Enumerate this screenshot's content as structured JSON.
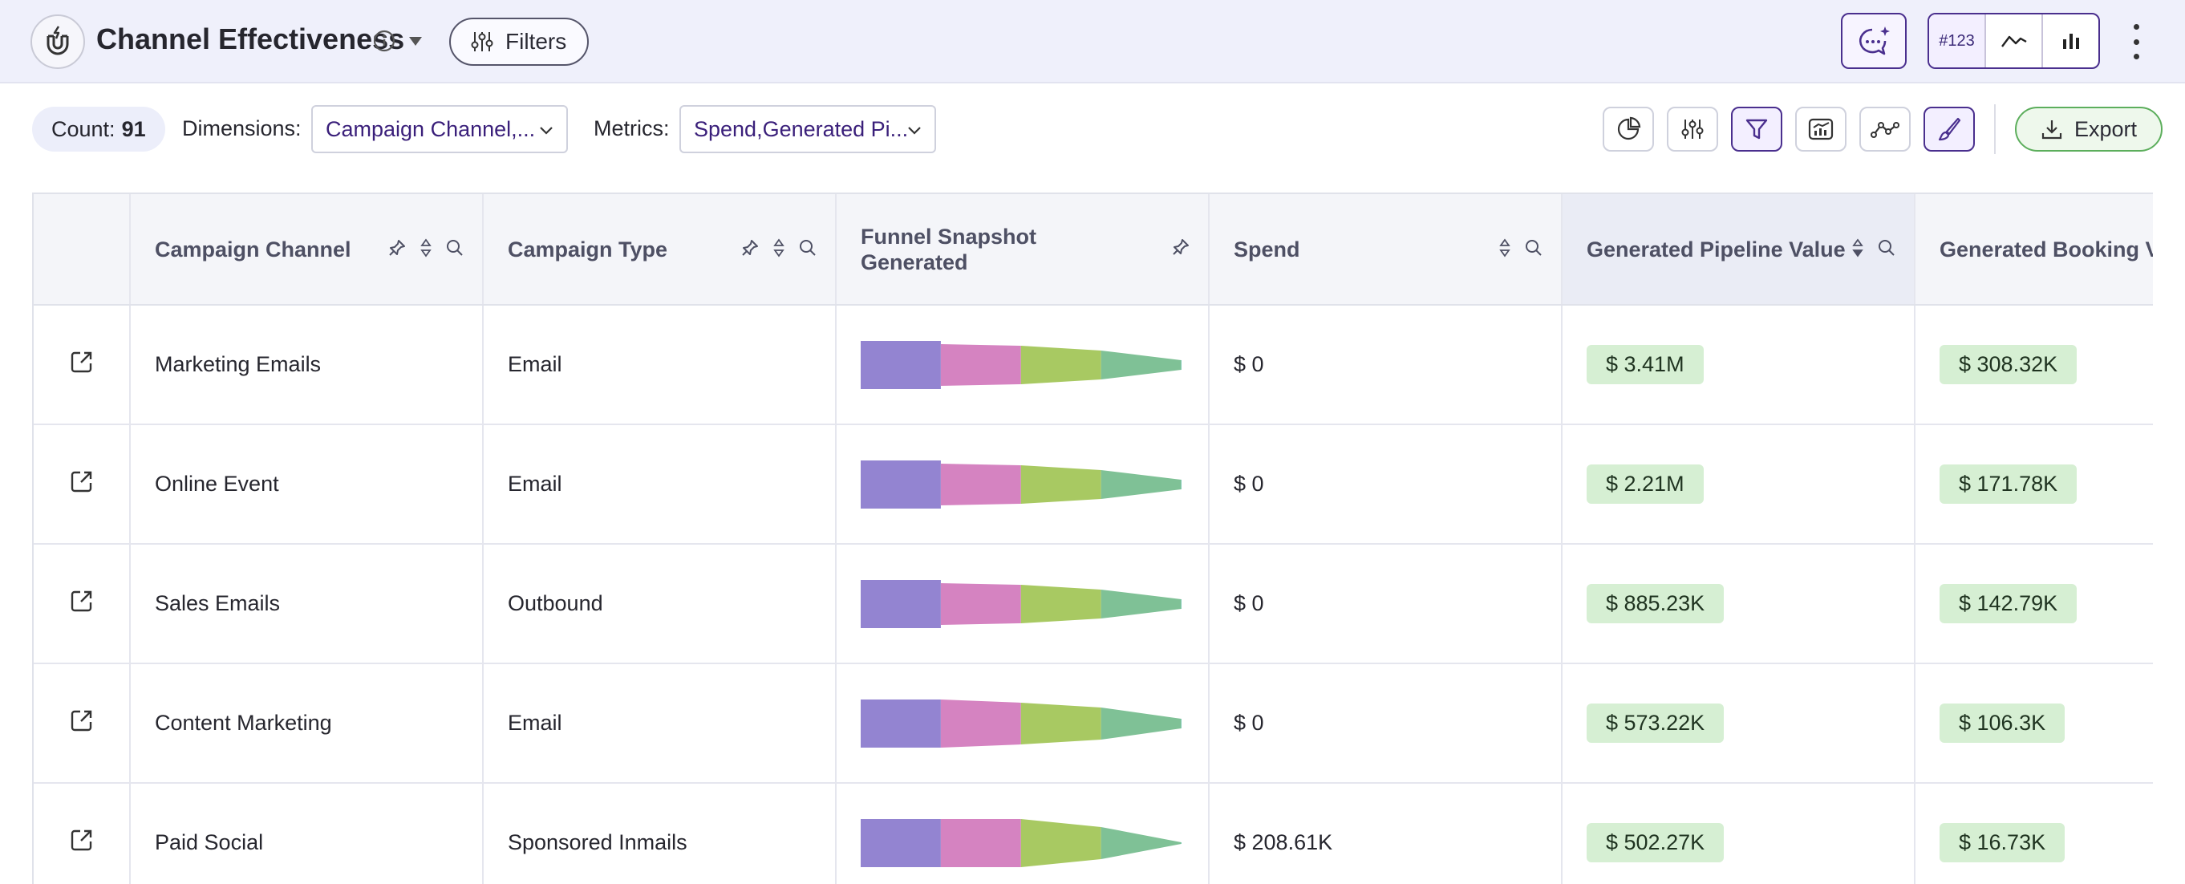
{
  "header": {
    "title": "Channel Effectiveness",
    "filters_label": "Filters",
    "view_buttons": [
      "#123"
    ]
  },
  "toolbar": {
    "count_label": "Count:",
    "count_value": "91",
    "dimensions_label": "Dimensions:",
    "dimensions_value": "Campaign Channel,...",
    "metrics_label": "Metrics:",
    "metrics_value": "Spend,Generated Pi...",
    "export_label": "Export"
  },
  "table": {
    "columns": [
      "Campaign Channel",
      "Campaign Type",
      "Funnel Snapshot Generated",
      "Spend",
      "Generated Pipeline Value",
      "Generated Booking Value"
    ],
    "rows": [
      {
        "channel": "Marketing Emails",
        "type": "Email",
        "spend": "$ 0",
        "pipeline": "$ 3.41M",
        "booking": "$ 308.32K"
      },
      {
        "channel": "Online Event",
        "type": "Email",
        "spend": "$ 0",
        "pipeline": "$ 2.21M",
        "booking": "$ 171.78K"
      },
      {
        "channel": "Sales Emails",
        "type": "Outbound",
        "spend": "$ 0",
        "pipeline": "$ 885.23K",
        "booking": "$ 142.79K"
      },
      {
        "channel": "Content Marketing",
        "type": "Email",
        "spend": "$ 0",
        "pipeline": "$ 573.22K",
        "booking": "$ 106.3K"
      },
      {
        "channel": "Paid Social",
        "type": "Sponsored Inmails",
        "spend": "$ 208.61K",
        "pipeline": "$ 502.27K",
        "booking": "$ 16.73K"
      }
    ]
  },
  "funnel_colors": [
    "#9384d1",
    "#d583c1",
    "#a8c962",
    "#7fc196",
    "#6fcbd0"
  ],
  "accent_color": "#4a2f8e"
}
